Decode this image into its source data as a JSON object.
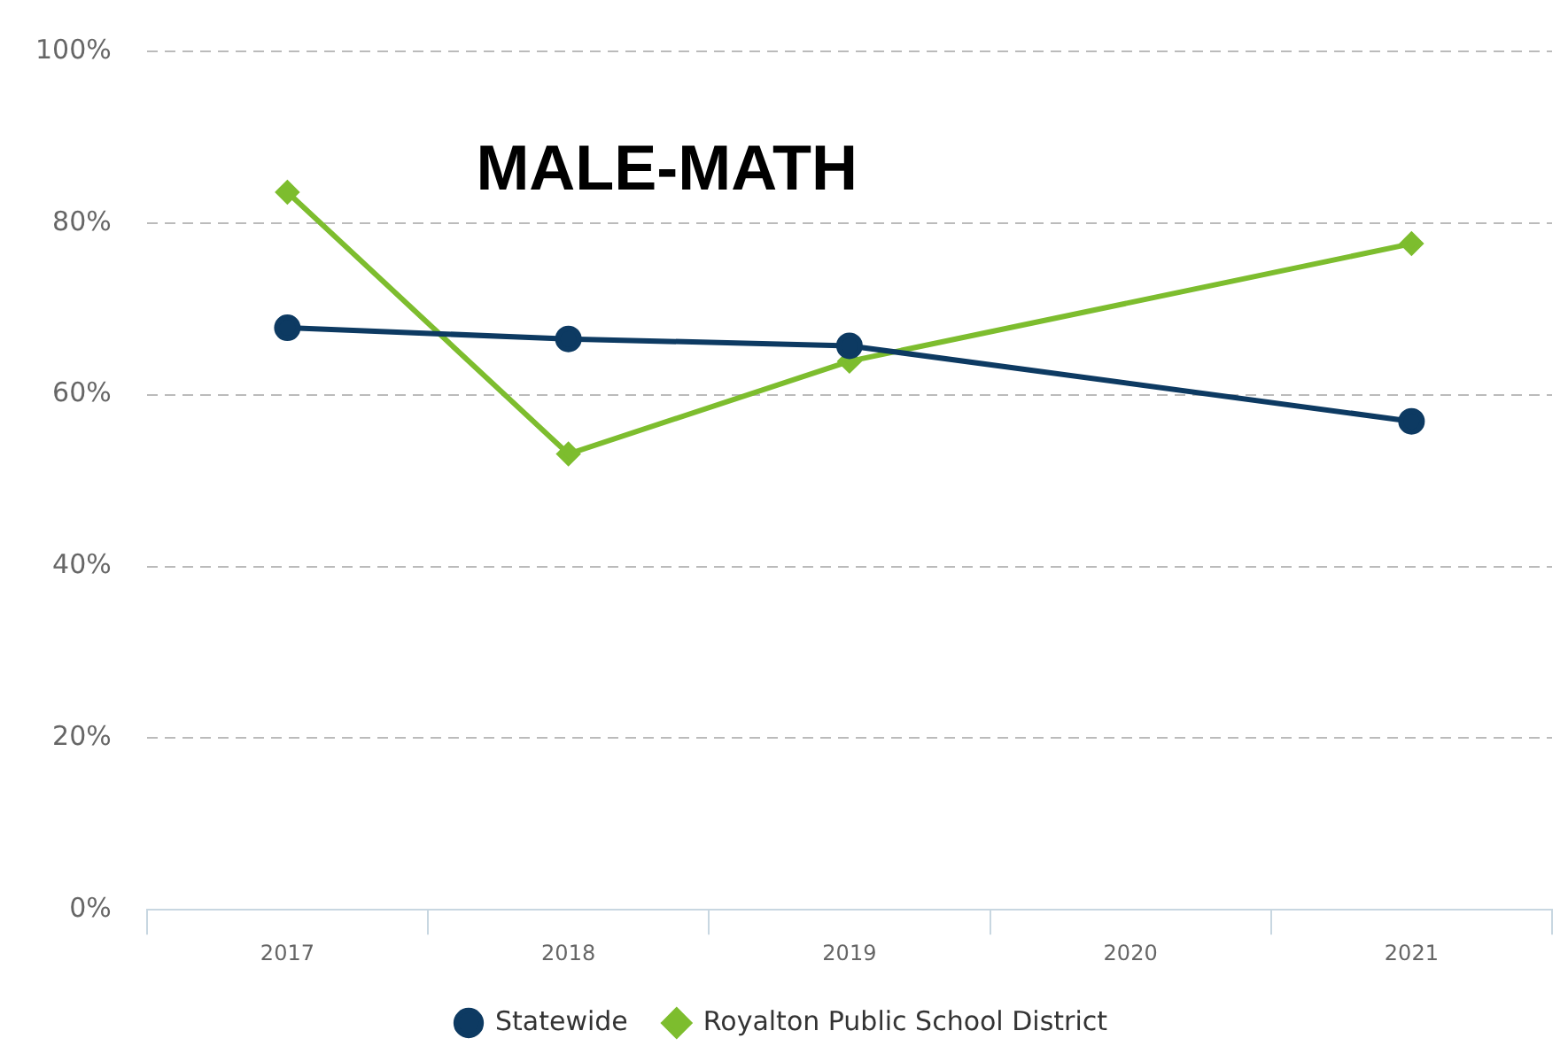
{
  "chart_data": {
    "type": "line",
    "title": "MALE-MATH",
    "categories": [
      "2017",
      "2018",
      "2019",
      "2020",
      "2021"
    ],
    "series": [
      {
        "name": "Statewide",
        "color": "#0d3a62",
        "values": [
          67.8,
          66.5,
          65.7,
          null,
          56.9
        ],
        "marker": "circle"
      },
      {
        "name": "Royalton Public School District",
        "color": "#7dbd2e",
        "values": [
          83.6,
          53.1,
          63.9,
          null,
          77.6
        ],
        "marker": "diamond"
      }
    ],
    "ylim": [
      0,
      100
    ],
    "yticks": [
      {
        "value": 0,
        "label": "0%"
      },
      {
        "value": 20,
        "label": "20%"
      },
      {
        "value": 40,
        "label": "40%"
      },
      {
        "value": 60,
        "label": "60%"
      },
      {
        "value": 80,
        "label": "80%"
      },
      {
        "value": 100,
        "label": "100%"
      }
    ],
    "grid": "y",
    "legend": "bottom",
    "line_style": "solid"
  }
}
